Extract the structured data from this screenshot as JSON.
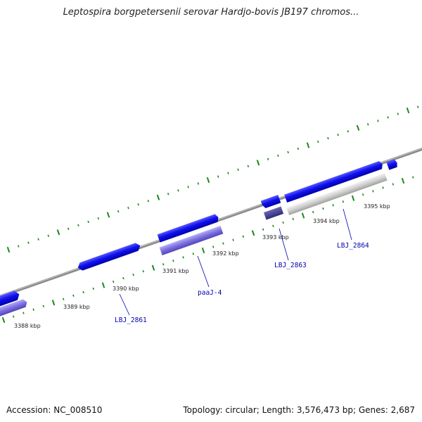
{
  "title": "Leptospira borgpetersenii serovar Hardjo-bovis JB197 chromos...",
  "footer": {
    "accession": "Accession: NC_008510",
    "topology": "Topology: circular; Length: 3,576,473 bp; Genes: 2,687"
  },
  "kbp_labels": [
    "3388 kbp",
    "3389 kbp",
    "3390 kbp",
    "3391 kbp",
    "3392 kbp",
    "3393 kbp",
    "3394 kbp",
    "3395 kbp"
  ],
  "gene_labels": [
    "LBJ_2861",
    "paaJ-4",
    "LBJ_2863",
    "LBJ_2864"
  ],
  "colors": {
    "gene_forward": "#1010ee",
    "gene_product": "#7b6fe0",
    "gene_dark": "#3d3a8f",
    "gene_pseudo": "#c8c8c8",
    "backbone": "#8a8a8a",
    "ticks": "#1a8a1a",
    "link": "#0000b0"
  }
}
